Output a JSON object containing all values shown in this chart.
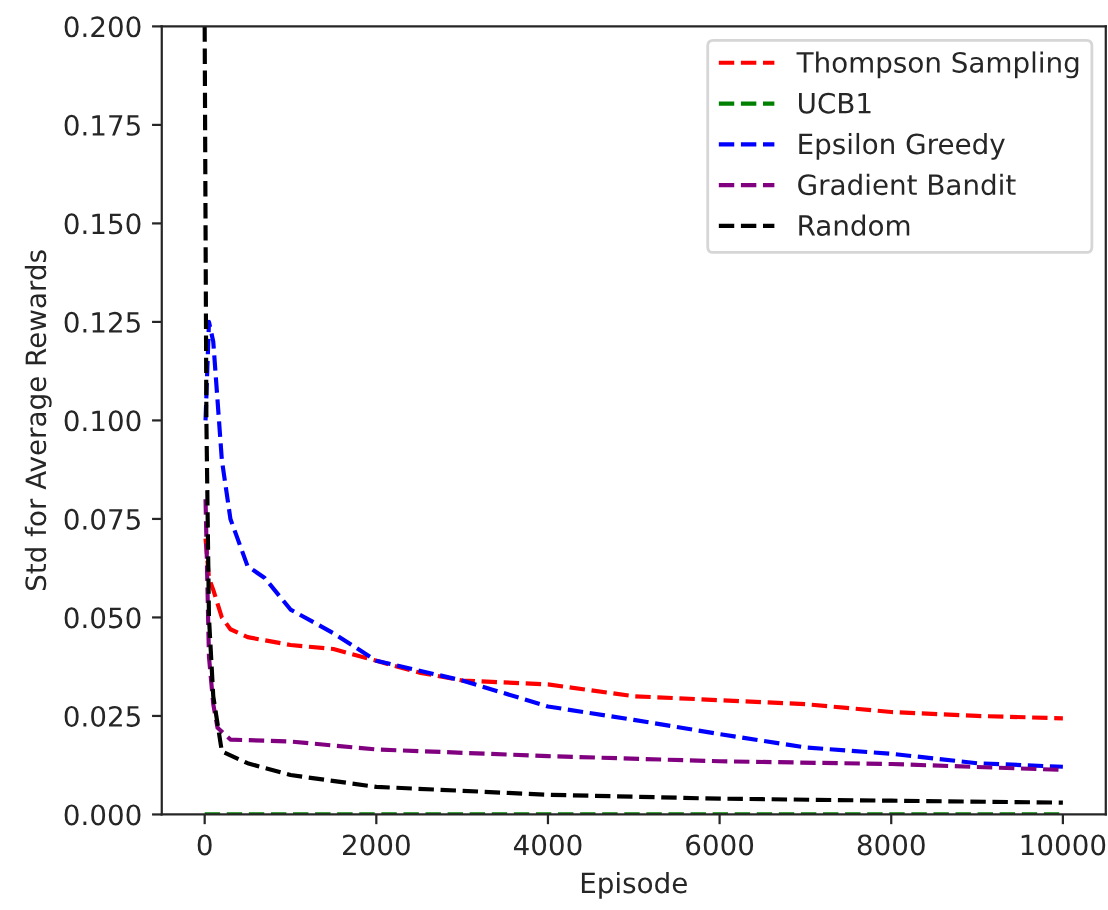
{
  "chart_data": {
    "type": "line",
    "xlabel": "Episode",
    "ylabel": "Std for Average Rewards",
    "xlim": [
      -500,
      10500
    ],
    "ylim": [
      0,
      0.2
    ],
    "xticks": [
      0,
      2000,
      4000,
      6000,
      8000,
      10000
    ],
    "yticks": [
      {
        "value": 0,
        "label": "0.000"
      },
      {
        "value": 0.025,
        "label": "0.025"
      },
      {
        "value": 0.05,
        "label": "0.050"
      },
      {
        "value": 0.075,
        "label": "0.075"
      },
      {
        "value": 0.1,
        "label": "0.100"
      },
      {
        "value": 0.125,
        "label": "0.125"
      },
      {
        "value": 0.15,
        "label": "0.150"
      },
      {
        "value": 0.175,
        "label": "0.175"
      },
      {
        "value": 0.2,
        "label": "0.200"
      }
    ],
    "grid": false,
    "legend": "top right",
    "line_style": "dashed",
    "marker": "none",
    "series": [
      {
        "name": "Thompson Sampling",
        "color": "#ff0000",
        "x": [
          10,
          50,
          100,
          200,
          300,
          500,
          1000,
          1500,
          2000,
          2500,
          3000,
          4000,
          5000,
          6000,
          7000,
          8000,
          9000,
          10000
        ],
        "values": [
          0.07,
          0.06,
          0.057,
          0.05,
          0.047,
          0.045,
          0.043,
          0.042,
          0.039,
          0.036,
          0.034,
          0.033,
          0.03,
          0.029,
          0.028,
          0.026,
          0.025,
          0.0244
        ]
      },
      {
        "name": "UCB1",
        "color": "#008000",
        "x": [
          0,
          10000
        ],
        "values": [
          0,
          0
        ]
      },
      {
        "name": "Epsilon Greedy",
        "color": "#0000ff",
        "x": [
          10,
          50,
          100,
          200,
          300,
          500,
          700,
          1000,
          1500,
          2000,
          3000,
          4000,
          5000,
          6000,
          7000,
          8000,
          9000,
          10000
        ],
        "values": [
          0.1,
          0.125,
          0.12,
          0.09,
          0.075,
          0.063,
          0.06,
          0.052,
          0.046,
          0.039,
          0.034,
          0.0274,
          0.024,
          0.0204,
          0.017,
          0.0154,
          0.013,
          0.0121
        ]
      },
      {
        "name": "Gradient Bandit",
        "color": "#800080",
        "x": [
          10,
          50,
          100,
          150,
          300,
          1000,
          2000,
          4000,
          6000,
          8000,
          10000
        ],
        "values": [
          0.08,
          0.04,
          0.028,
          0.022,
          0.019,
          0.0185,
          0.0165,
          0.0148,
          0.0135,
          0.0128,
          0.0113
        ]
      },
      {
        "name": "Random",
        "color": "#000000",
        "x": [
          0,
          20,
          50,
          100,
          200,
          500,
          1000,
          2000,
          4000,
          6000,
          8000,
          10000
        ],
        "values": [
          0.2,
          0.1,
          0.05,
          0.03,
          0.016,
          0.013,
          0.01,
          0.007,
          0.005,
          0.004,
          0.0035,
          0.003
        ]
      }
    ]
  }
}
